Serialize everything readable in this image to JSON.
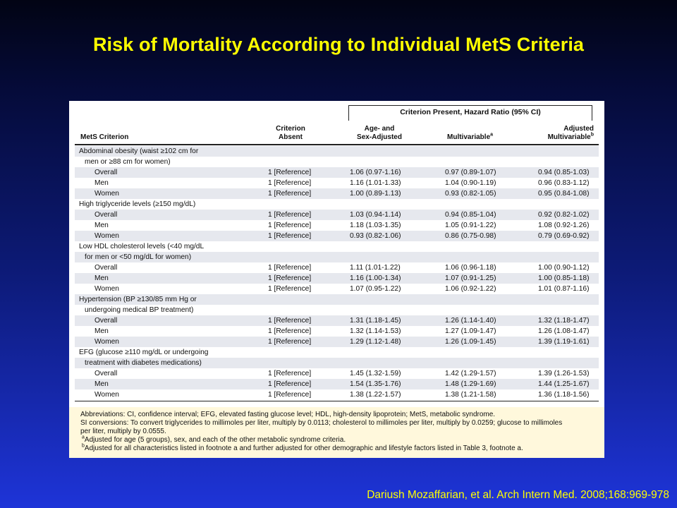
{
  "title": "Risk of Mortality According to Individual MetS Criteria",
  "table": {
    "group_header": "Criterion Present, Hazard Ratio (95% CI)",
    "col_criterion": "MetS Criterion",
    "col_absent_1": "Criterion",
    "col_absent_2": "Absent",
    "col_age_1": "Age- and",
    "col_age_2": "Sex-Adjusted",
    "col_multi": "Multivariable",
    "col_multi_sup": "a",
    "col_adj_1": "Adjusted",
    "col_adj_2": "Multivariable",
    "col_adj_sup": "b",
    "rows": [
      {
        "label": "Abdominal obesity (waist ≥102 cm for",
        "indent": false
      },
      {
        "label": "men or ≥88 cm for women)",
        "indent": "half"
      },
      {
        "label": "Overall",
        "indent": true,
        "absent": "1 [Reference]",
        "age": "1.06 (0.97-1.16)",
        "multi": "0.97 (0.89-1.07)",
        "adj": "0.94 (0.85-1.03)"
      },
      {
        "label": "Men",
        "indent": true,
        "absent": "1 [Reference]",
        "age": "1.16 (1.01-1.33)",
        "multi": "1.04 (0.90-1.19)",
        "adj": "0.96 (0.83-1.12)"
      },
      {
        "label": "Women",
        "indent": true,
        "absent": "1 [Reference]",
        "age": "1.00 (0.89-1.13)",
        "multi": "0.93 (0.82-1.05)",
        "adj": "0.95 (0.84-1.08)"
      },
      {
        "label": "High triglyceride levels (≥150 mg/dL)",
        "indent": false
      },
      {
        "label": "Overall",
        "indent": true,
        "absent": "1 [Reference]",
        "age": "1.03 (0.94-1.14)",
        "multi": "0.94 (0.85-1.04)",
        "adj": "0.92 (0.82-1.02)"
      },
      {
        "label": "Men",
        "indent": true,
        "absent": "1 [Reference]",
        "age": "1.18 (1.03-1.35)",
        "multi": "1.05 (0.91-1.22)",
        "adj": "1.08 (0.92-1.26)"
      },
      {
        "label": "Women",
        "indent": true,
        "absent": "1 [Reference]",
        "age": "0.93 (0.82-1.06)",
        "multi": "0.86 (0.75-0.98)",
        "adj": "0.79 (0.69-0.92)"
      },
      {
        "label": "Low HDL cholesterol levels (<40 mg/dL",
        "indent": false
      },
      {
        "label": "for men or <50 mg/dL for women)",
        "indent": "half"
      },
      {
        "label": "Overall",
        "indent": true,
        "absent": "1 [Reference]",
        "age": "1.11 (1.01-1.22)",
        "multi": "1.06 (0.96-1.18)",
        "adj": "1.00 (0.90-1.12)"
      },
      {
        "label": "Men",
        "indent": true,
        "absent": "1 [Reference]",
        "age": "1.16 (1.00-1.34)",
        "multi": "1.07 (0.91-1.25)",
        "adj": "1.00 (0.85-1.18)"
      },
      {
        "label": "Women",
        "indent": true,
        "absent": "1 [Reference]",
        "age": "1.07 (0.95-1.22)",
        "multi": "1.06 (0.92-1.22)",
        "adj": "1.01 (0.87-1.16)"
      },
      {
        "label": "Hypertension (BP ≥130/85 mm Hg or",
        "indent": false
      },
      {
        "label": "undergoing medical BP treatment)",
        "indent": "half"
      },
      {
        "label": "Overall",
        "indent": true,
        "absent": "1 [Reference]",
        "age": "1.31 (1.18-1.45)",
        "multi": "1.26 (1.14-1.40)",
        "adj": "1.32 (1.18-1.47)"
      },
      {
        "label": "Men",
        "indent": true,
        "absent": "1 [Reference]",
        "age": "1.32 (1.14-1.53)",
        "multi": "1.27 (1.09-1.47)",
        "adj": "1.26 (1.08-1.47)"
      },
      {
        "label": "Women",
        "indent": true,
        "absent": "1 [Reference]",
        "age": "1.29 (1.12-1.48)",
        "multi": "1.26 (1.09-1.45)",
        "adj": "1.39 (1.19-1.61)"
      },
      {
        "label": "EFG (glucose ≥110 mg/dL or undergoing",
        "indent": false
      },
      {
        "label": "treatment with diabetes medications)",
        "indent": "half"
      },
      {
        "label": "Overall",
        "indent": true,
        "absent": "1 [Reference]",
        "age": "1.45 (1.32-1.59)",
        "multi": "1.42 (1.29-1.57)",
        "adj": "1.39 (1.26-1.53)"
      },
      {
        "label": "Men",
        "indent": true,
        "absent": "1 [Reference]",
        "age": "1.54 (1.35-1.76)",
        "multi": "1.48 (1.29-1.69)",
        "adj": "1.44 (1.25-1.67)"
      },
      {
        "label": "Women",
        "indent": true,
        "absent": "1 [Reference]",
        "age": "1.38 (1.22-1.57)",
        "multi": "1.38 (1.21-1.58)",
        "adj": "1.36 (1.18-1.56)"
      }
    ]
  },
  "footnotes": {
    "abbrev": "Abbreviations: CI, confidence interval; EFG, elevated fasting glucose level; HDL, high-density lipoprotein; MetS, metabolic syndrome.",
    "si_1": "SI conversions: To convert triglycerides to millimoles per liter, multiply by 0.0113; cholesterol to millimoles per liter, multiply by 0.0259; glucose to millimoles",
    "si_2": "per liter, multiply by 0.0555.",
    "a_mark": "a",
    "a_text": "Adjusted for age (5 groups), sex, and each of the other metabolic syndrome criteria.",
    "b_mark": "b",
    "b_text": "Adjusted for all characteristics listed in footnote a and further adjusted for other demographic and lifestyle factors listed in Table 3, footnote a."
  },
  "citation": "Dariush Mozaffarian, et al. Arch Intern Med. 2008;168:969-978"
}
